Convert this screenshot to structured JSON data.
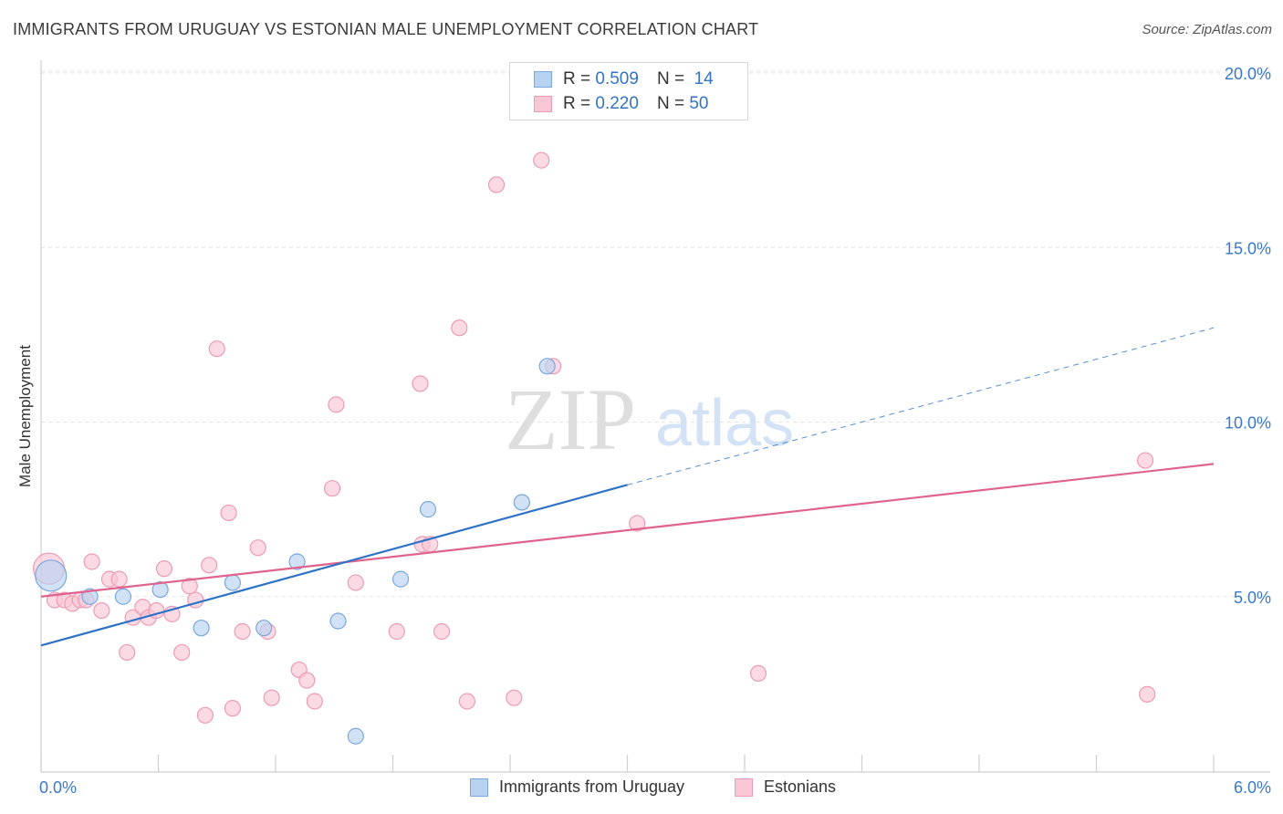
{
  "title": "IMMIGRANTS FROM URUGUAY VS ESTONIAN MALE UNEMPLOYMENT CORRELATION CHART",
  "source": "Source: ZipAtlas.com",
  "watermark": {
    "zip": "ZIP",
    "atlas": "atlas"
  },
  "legend_top": [
    {
      "r_label": "R =",
      "r_value": "0.509",
      "n_label": "N =",
      "n_value": "14"
    },
    {
      "r_label": "R =",
      "r_value": "0.220",
      "n_label": "N =",
      "n_value": "50"
    }
  ],
  "legend_bottom": [
    "Immigrants from Uruguay",
    "Estonians"
  ],
  "colors": {
    "uruguay_fill": "#b8d3f2",
    "uruguay_stroke": "#7aa7dc",
    "uruguay_line": "#2e72c8",
    "estonian_fill": "#f9c6d5",
    "estonian_stroke": "#ec9bb5",
    "estonian_line": "#e0628f",
    "tick_text": "#3a78c9",
    "grid": "#e3e3e3"
  },
  "chart_data": {
    "type": "scatter",
    "title": "IMMIGRANTS FROM URUGUAY VS ESTONIAN MALE UNEMPLOYMENT CORRELATION CHART",
    "xlabel": "",
    "ylabel": "Male Unemployment",
    "xlim": [
      0,
      6
    ],
    "ylim": [
      0,
      20
    ],
    "x_tick_labels": [
      "0.0%",
      "6.0%"
    ],
    "y_ticks": [
      5,
      10,
      15,
      20
    ],
    "y_tick_labels": [
      "5.0%",
      "10.0%",
      "15.0%",
      "20.0%"
    ],
    "grid": true,
    "series": [
      {
        "name": "Immigrants from Uruguay",
        "r": 0.509,
        "n": 14,
        "points": [
          {
            "x": 0.05,
            "y": 5.6,
            "size": "large"
          },
          {
            "x": 0.25,
            "y": 5.0
          },
          {
            "x": 0.42,
            "y": 5.0
          },
          {
            "x": 0.61,
            "y": 5.2
          },
          {
            "x": 0.82,
            "y": 4.1
          },
          {
            "x": 0.98,
            "y": 5.4
          },
          {
            "x": 1.14,
            "y": 4.1
          },
          {
            "x": 1.31,
            "y": 6.0
          },
          {
            "x": 1.52,
            "y": 4.3
          },
          {
            "x": 1.61,
            "y": 1.0
          },
          {
            "x": 1.84,
            "y": 5.5
          },
          {
            "x": 1.98,
            "y": 7.5
          },
          {
            "x": 2.46,
            "y": 7.7
          },
          {
            "x": 2.59,
            "y": 11.6
          }
        ],
        "trend": {
          "x": [
            0,
            3.0
          ],
          "y": [
            3.6,
            8.2
          ]
        },
        "trend_extension": {
          "x": [
            3.0,
            6.0
          ],
          "y": [
            8.2,
            12.7
          ]
        }
      },
      {
        "name": "Estonians",
        "r": 0.22,
        "n": 50,
        "points": [
          {
            "x": 0.04,
            "y": 5.8,
            "size": "large"
          },
          {
            "x": 0.07,
            "y": 4.9
          },
          {
            "x": 0.12,
            "y": 4.9
          },
          {
            "x": 0.16,
            "y": 4.8
          },
          {
            "x": 0.2,
            "y": 4.9
          },
          {
            "x": 0.23,
            "y": 4.9
          },
          {
            "x": 0.26,
            "y": 6.0
          },
          {
            "x": 0.31,
            "y": 4.6
          },
          {
            "x": 0.35,
            "y": 5.5
          },
          {
            "x": 0.4,
            "y": 5.5
          },
          {
            "x": 0.44,
            "y": 3.4
          },
          {
            "x": 0.47,
            "y": 4.4
          },
          {
            "x": 0.52,
            "y": 4.7
          },
          {
            "x": 0.55,
            "y": 4.4
          },
          {
            "x": 0.59,
            "y": 4.6
          },
          {
            "x": 0.63,
            "y": 5.8
          },
          {
            "x": 0.67,
            "y": 4.5
          },
          {
            "x": 0.72,
            "y": 3.4
          },
          {
            "x": 0.76,
            "y": 5.3
          },
          {
            "x": 0.79,
            "y": 4.9
          },
          {
            "x": 0.84,
            "y": 1.6
          },
          {
            "x": 0.86,
            "y": 5.9
          },
          {
            "x": 0.9,
            "y": 12.1
          },
          {
            "x": 0.96,
            "y": 7.4
          },
          {
            "x": 0.98,
            "y": 1.8
          },
          {
            "x": 1.03,
            "y": 4.0
          },
          {
            "x": 1.11,
            "y": 6.4
          },
          {
            "x": 1.16,
            "y": 4.0
          },
          {
            "x": 1.18,
            "y": 2.1
          },
          {
            "x": 1.32,
            "y": 2.9
          },
          {
            "x": 1.36,
            "y": 2.6
          },
          {
            "x": 1.4,
            "y": 2.0
          },
          {
            "x": 1.49,
            "y": 8.1
          },
          {
            "x": 1.51,
            "y": 10.5
          },
          {
            "x": 1.61,
            "y": 5.4
          },
          {
            "x": 1.82,
            "y": 4.0
          },
          {
            "x": 1.94,
            "y": 11.1
          },
          {
            "x": 1.95,
            "y": 6.5
          },
          {
            "x": 1.99,
            "y": 6.5
          },
          {
            "x": 2.05,
            "y": 4.0
          },
          {
            "x": 2.14,
            "y": 12.7
          },
          {
            "x": 2.18,
            "y": 2.0
          },
          {
            "x": 2.33,
            "y": 16.8
          },
          {
            "x": 2.42,
            "y": 2.1
          },
          {
            "x": 2.56,
            "y": 17.5
          },
          {
            "x": 2.62,
            "y": 11.6
          },
          {
            "x": 3.05,
            "y": 7.1
          },
          {
            "x": 3.67,
            "y": 2.8
          },
          {
            "x": 5.65,
            "y": 8.9
          },
          {
            "x": 5.66,
            "y": 2.2
          }
        ],
        "trend": {
          "x": [
            0,
            6.0
          ],
          "y": [
            5.0,
            8.8
          ]
        }
      }
    ]
  }
}
